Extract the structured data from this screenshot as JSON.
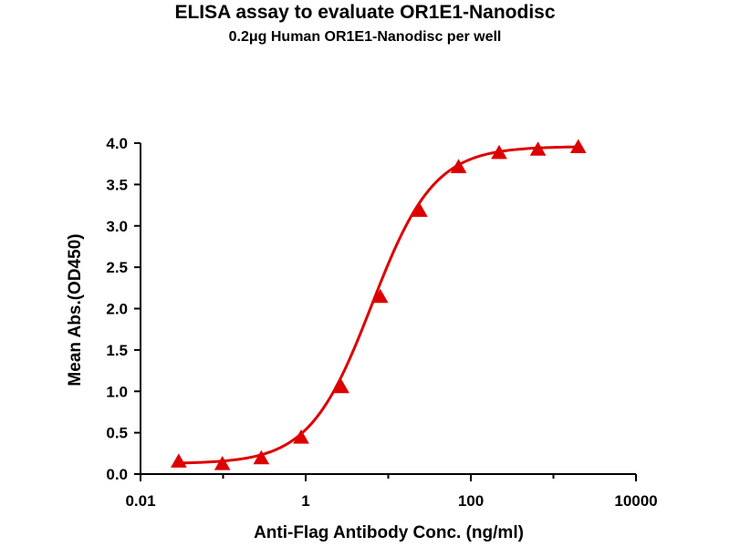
{
  "chart_data": {
    "type": "line",
    "title": "ELISA assay to evaluate OR1E1-Nanodisc",
    "subtitle": "0.2μg Human OR1E1-Nanodisc per well",
    "xlabel": "Anti-Flag Antibody Conc. (ng/ml)",
    "ylabel": "Mean Abs.(OD450)",
    "x_scale": "log",
    "xlim": [
      0.01,
      10000
    ],
    "ylim": [
      0,
      4.0
    ],
    "x_ticks": [
      0.01,
      1,
      100,
      10000
    ],
    "x_tick_labels": [
      "0.01",
      "1",
      "100",
      "10000"
    ],
    "y_ticks": [
      0,
      0.5,
      1.0,
      1.5,
      2.0,
      2.5,
      3.0,
      3.5,
      4.0
    ],
    "y_tick_labels": [
      "0.0",
      "0.5",
      "1.0",
      "1.5",
      "2.0",
      "2.5",
      "3.0",
      "3.5",
      "4.0"
    ],
    "grid": false,
    "series": [
      {
        "marker": "triangle",
        "color": "#dd0000",
        "x": [
          0.029,
          0.098,
          0.29,
          0.88,
          2.7,
          8.0,
          24.0,
          71.0,
          220.0,
          650.0,
          2000.0
        ],
        "y": [
          0.15,
          0.12,
          0.19,
          0.44,
          1.05,
          2.14,
          3.18,
          3.71,
          3.88,
          3.92,
          3.95
        ]
      }
    ]
  }
}
